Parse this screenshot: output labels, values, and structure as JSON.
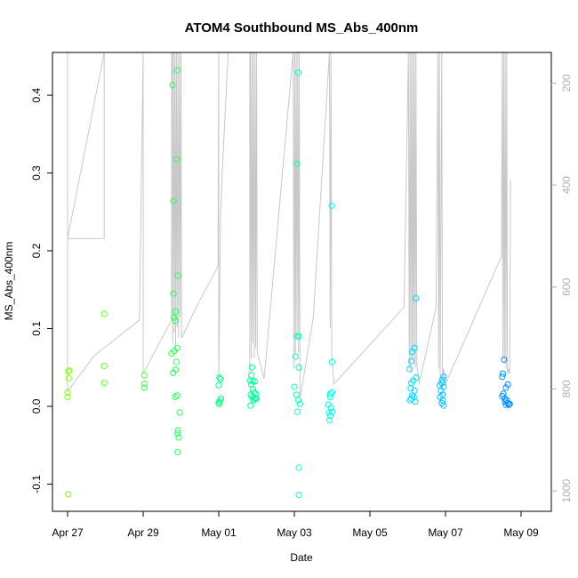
{
  "chart_data": {
    "type": "scatter",
    "title": "ATOM4 Southbound MS_Abs_400nm",
    "xlabel": "Date",
    "ylabel": "MS_Abs_400nm",
    "x_unit": "days since Apr 27",
    "xlim": [
      -0.4,
      12.8
    ],
    "ylim": [
      -0.135,
      0.455
    ],
    "x_ticks": [
      {
        "value": 0,
        "label": "Apr 27"
      },
      {
        "value": 2,
        "label": "Apr 29"
      },
      {
        "value": 4,
        "label": "May 01"
      },
      {
        "value": 6,
        "label": "May 03"
      },
      {
        "value": 8,
        "label": "May 05"
      },
      {
        "value": 10,
        "label": "May 07"
      },
      {
        "value": 12,
        "label": "May 09"
      }
    ],
    "y_ticks": [
      {
        "value": -0.1,
        "label": "-0.1"
      },
      {
        "value": 0.0,
        "label": "0.0"
      },
      {
        "value": 0.1,
        "label": "0.1"
      },
      {
        "value": 0.2,
        "label": "0.2"
      },
      {
        "value": 0.3,
        "label": "0.3"
      },
      {
        "value": 0.4,
        "label": "0.4"
      }
    ],
    "right_axis": {
      "label": "",
      "range": [
        1040,
        140
      ],
      "ticks": [
        {
          "value": 200,
          "label": "200"
        },
        {
          "value": 400,
          "label": "400"
        },
        {
          "value": 600,
          "label": "600"
        },
        {
          "value": 800,
          "label": "800"
        },
        {
          "value": 1000,
          "label": "1000"
        }
      ]
    },
    "series": [
      {
        "name": "MS_Abs_400nm",
        "color_scale": [
          "#7fff00",
          "#00ff7f",
          "#00ffff",
          "#0080ff"
        ],
        "points": [
          {
            "x": 0.02,
            "y": 0.045
          },
          {
            "x": 0.05,
            "y": 0.046
          },
          {
            "x": 0.03,
            "y": 0.036
          },
          {
            "x": 0.0,
            "y": 0.018
          },
          {
            "x": 0.0,
            "y": 0.012
          },
          {
            "x": 0.02,
            "y": -0.113
          },
          {
            "x": 0.97,
            "y": 0.119
          },
          {
            "x": 0.97,
            "y": 0.052
          },
          {
            "x": 0.97,
            "y": 0.03
          },
          {
            "x": 2.03,
            "y": 0.04
          },
          {
            "x": 2.03,
            "y": 0.029
          },
          {
            "x": 2.03,
            "y": 0.024
          },
          {
            "x": 2.78,
            "y": 0.413
          },
          {
            "x": 2.9,
            "y": 0.432
          },
          {
            "x": 2.88,
            "y": 0.318
          },
          {
            "x": 2.8,
            "y": 0.264
          },
          {
            "x": 2.92,
            "y": 0.168
          },
          {
            "x": 2.8,
            "y": 0.145
          },
          {
            "x": 2.86,
            "y": 0.122
          },
          {
            "x": 2.82,
            "y": 0.114
          },
          {
            "x": 2.85,
            "y": 0.11
          },
          {
            "x": 2.75,
            "y": 0.068
          },
          {
            "x": 2.82,
            "y": 0.071
          },
          {
            "x": 2.9,
            "y": 0.075
          },
          {
            "x": 2.88,
            "y": 0.057
          },
          {
            "x": 2.86,
            "y": 0.047
          },
          {
            "x": 2.79,
            "y": 0.043
          },
          {
            "x": 2.85,
            "y": 0.012
          },
          {
            "x": 2.9,
            "y": 0.014
          },
          {
            "x": 2.97,
            "y": -0.008
          },
          {
            "x": 2.92,
            "y": -0.031
          },
          {
            "x": 2.91,
            "y": -0.035
          },
          {
            "x": 2.94,
            "y": -0.04
          },
          {
            "x": 2.91,
            "y": -0.059
          },
          {
            "x": 4.02,
            "y": 0.037
          },
          {
            "x": 4.05,
            "y": 0.035
          },
          {
            "x": 4.0,
            "y": 0.027
          },
          {
            "x": 4.06,
            "y": 0.01
          },
          {
            "x": 4.03,
            "y": 0.007
          },
          {
            "x": 4.02,
            "y": 0.003
          },
          {
            "x": 4.0,
            "y": 0.005
          },
          {
            "x": 4.88,
            "y": 0.05
          },
          {
            "x": 4.86,
            "y": 0.04
          },
          {
            "x": 4.83,
            "y": 0.033
          },
          {
            "x": 4.9,
            "y": 0.032
          },
          {
            "x": 4.95,
            "y": 0.032
          },
          {
            "x": 4.86,
            "y": 0.028
          },
          {
            "x": 4.9,
            "y": 0.022
          },
          {
            "x": 4.93,
            "y": 0.018
          },
          {
            "x": 4.98,
            "y": 0.016
          },
          {
            "x": 4.85,
            "y": 0.015
          },
          {
            "x": 4.88,
            "y": 0.012
          },
          {
            "x": 4.95,
            "y": 0.011
          },
          {
            "x": 4.92,
            "y": 0.008
          },
          {
            "x": 4.97,
            "y": 0.009
          },
          {
            "x": 4.84,
            "y": 0.001
          },
          {
            "x": 5.0,
            "y": 0.01
          },
          {
            "x": 6.1,
            "y": 0.429
          },
          {
            "x": 6.07,
            "y": 0.312
          },
          {
            "x": 6.07,
            "y": 0.09
          },
          {
            "x": 6.12,
            "y": 0.09
          },
          {
            "x": 6.03,
            "y": 0.064
          },
          {
            "x": 6.12,
            "y": 0.05
          },
          {
            "x": 6.0,
            "y": 0.025
          },
          {
            "x": 6.05,
            "y": 0.015
          },
          {
            "x": 6.1,
            "y": 0.008
          },
          {
            "x": 6.15,
            "y": 0.003
          },
          {
            "x": 6.08,
            "y": -0.007
          },
          {
            "x": 6.12,
            "y": -0.079
          },
          {
            "x": 6.12,
            "y": -0.114
          },
          {
            "x": 6.99,
            "y": 0.258
          },
          {
            "x": 7.0,
            "y": 0.057
          },
          {
            "x": 6.95,
            "y": 0.016
          },
          {
            "x": 7.0,
            "y": 0.018
          },
          {
            "x": 6.95,
            "y": 0.012
          },
          {
            "x": 6.9,
            "y": 0.002
          },
          {
            "x": 6.97,
            "y": -0.002
          },
          {
            "x": 6.92,
            "y": -0.008
          },
          {
            "x": 7.0,
            "y": -0.007
          },
          {
            "x": 6.95,
            "y": -0.012
          },
          {
            "x": 6.93,
            "y": -0.018
          },
          {
            "x": 9.22,
            "y": 0.139
          },
          {
            "x": 9.18,
            "y": 0.075
          },
          {
            "x": 9.12,
            "y": 0.07
          },
          {
            "x": 9.1,
            "y": 0.058
          },
          {
            "x": 9.05,
            "y": 0.048
          },
          {
            "x": 9.22,
            "y": 0.037
          },
          {
            "x": 9.15,
            "y": 0.033
          },
          {
            "x": 9.1,
            "y": 0.03
          },
          {
            "x": 9.08,
            "y": 0.023
          },
          {
            "x": 9.18,
            "y": 0.02
          },
          {
            "x": 9.12,
            "y": 0.014
          },
          {
            "x": 9.16,
            "y": 0.012
          },
          {
            "x": 9.06,
            "y": 0.008
          },
          {
            "x": 9.2,
            "y": 0.006
          },
          {
            "x": 9.1,
            "y": 0.01
          },
          {
            "x": 9.95,
            "y": 0.038
          },
          {
            "x": 9.92,
            "y": 0.034
          },
          {
            "x": 9.9,
            "y": 0.03
          },
          {
            "x": 9.85,
            "y": 0.027
          },
          {
            "x": 9.95,
            "y": 0.025
          },
          {
            "x": 9.88,
            "y": 0.02
          },
          {
            "x": 9.92,
            "y": 0.015
          },
          {
            "x": 9.86,
            "y": 0.012
          },
          {
            "x": 9.93,
            "y": 0.008
          },
          {
            "x": 9.9,
            "y": 0.004
          },
          {
            "x": 9.95,
            "y": 0.001
          },
          {
            "x": 11.55,
            "y": 0.06
          },
          {
            "x": 11.52,
            "y": 0.042
          },
          {
            "x": 11.5,
            "y": 0.038
          },
          {
            "x": 11.65,
            "y": 0.028
          },
          {
            "x": 11.6,
            "y": 0.024
          },
          {
            "x": 11.53,
            "y": 0.016
          },
          {
            "x": 11.5,
            "y": 0.013
          },
          {
            "x": 11.57,
            "y": 0.01
          },
          {
            "x": 11.62,
            "y": 0.008
          },
          {
            "x": 11.58,
            "y": 0.006
          },
          {
            "x": 11.65,
            "y": 0.004
          },
          {
            "x": 11.7,
            "y": 0.003
          },
          {
            "x": 11.6,
            "y": 0.002
          },
          {
            "x": 11.68,
            "y": 0.002
          }
        ]
      },
      {
        "name": "right-axis trace (grey)",
        "color": "#c8c8c8",
        "axis": "right",
        "points": [
          {
            "x": 0.0,
            "y": 140
          },
          {
            "x": 0.0,
            "y": 505
          },
          {
            "x": 0.97,
            "y": 505
          },
          {
            "x": 0.97,
            "y": 140
          },
          {
            "x": 0.97,
            "y": 140
          },
          {
            "x": 0.0,
            "y": 505
          },
          {
            "x": 0.0,
            "y": 805
          },
          {
            "x": 0.7,
            "y": 735
          },
          {
            "x": 1.9,
            "y": 665
          },
          {
            "x": 2.0,
            "y": 140
          },
          {
            "x": 2.0,
            "y": 770
          },
          {
            "x": 2.75,
            "y": 665
          },
          {
            "x": 2.75,
            "y": 140
          },
          {
            "x": 2.78,
            "y": 140
          },
          {
            "x": 2.78,
            "y": 710
          },
          {
            "x": 2.8,
            "y": 140
          },
          {
            "x": 2.82,
            "y": 690
          },
          {
            "x": 2.84,
            "y": 140
          },
          {
            "x": 2.86,
            "y": 720
          },
          {
            "x": 2.88,
            "y": 140
          },
          {
            "x": 2.9,
            "y": 680
          },
          {
            "x": 2.92,
            "y": 140
          },
          {
            "x": 2.94,
            "y": 700
          },
          {
            "x": 2.96,
            "y": 140
          },
          {
            "x": 2.98,
            "y": 660
          },
          {
            "x": 3.0,
            "y": 140
          },
          {
            "x": 3.02,
            "y": 700
          },
          {
            "x": 3.4,
            "y": 640
          },
          {
            "x": 3.98,
            "y": 560
          },
          {
            "x": 4.0,
            "y": 140
          },
          {
            "x": 4.0,
            "y": 780
          },
          {
            "x": 4.05,
            "y": 460
          },
          {
            "x": 4.1,
            "y": 360
          },
          {
            "x": 4.25,
            "y": 140
          },
          {
            "x": 4.82,
            "y": 140
          },
          {
            "x": 4.82,
            "y": 770
          },
          {
            "x": 4.84,
            "y": 140
          },
          {
            "x": 4.86,
            "y": 740
          },
          {
            "x": 4.88,
            "y": 140
          },
          {
            "x": 4.9,
            "y": 710
          },
          {
            "x": 4.92,
            "y": 140
          },
          {
            "x": 4.94,
            "y": 740
          },
          {
            "x": 4.96,
            "y": 140
          },
          {
            "x": 4.98,
            "y": 720
          },
          {
            "x": 5.0,
            "y": 140
          },
          {
            "x": 5.02,
            "y": 730
          },
          {
            "x": 5.2,
            "y": 780
          },
          {
            "x": 5.97,
            "y": 140
          },
          {
            "x": 5.99,
            "y": 760
          },
          {
            "x": 6.01,
            "y": 140
          },
          {
            "x": 6.03,
            "y": 730
          },
          {
            "x": 6.05,
            "y": 140
          },
          {
            "x": 6.07,
            "y": 700
          },
          {
            "x": 6.09,
            "y": 140
          },
          {
            "x": 6.11,
            "y": 730
          },
          {
            "x": 6.13,
            "y": 140
          },
          {
            "x": 6.15,
            "y": 820
          },
          {
            "x": 6.5,
            "y": 660
          },
          {
            "x": 6.93,
            "y": 140
          },
          {
            "x": 6.95,
            "y": 680
          },
          {
            "x": 6.97,
            "y": 140
          },
          {
            "x": 6.99,
            "y": 730
          },
          {
            "x": 7.05,
            "y": 790
          },
          {
            "x": 8.9,
            "y": 640
          },
          {
            "x": 9.02,
            "y": 140
          },
          {
            "x": 9.04,
            "y": 760
          },
          {
            "x": 9.06,
            "y": 140
          },
          {
            "x": 9.08,
            "y": 770
          },
          {
            "x": 9.1,
            "y": 140
          },
          {
            "x": 9.12,
            "y": 740
          },
          {
            "x": 9.14,
            "y": 140
          },
          {
            "x": 9.16,
            "y": 750
          },
          {
            "x": 9.18,
            "y": 140
          },
          {
            "x": 9.2,
            "y": 760
          },
          {
            "x": 9.22,
            "y": 140
          },
          {
            "x": 9.24,
            "y": 750
          },
          {
            "x": 9.3,
            "y": 790
          },
          {
            "x": 9.75,
            "y": 640
          },
          {
            "x": 9.8,
            "y": 140
          },
          {
            "x": 9.82,
            "y": 760
          },
          {
            "x": 9.84,
            "y": 140
          },
          {
            "x": 9.86,
            "y": 780
          },
          {
            "x": 9.9,
            "y": 140
          },
          {
            "x": 9.92,
            "y": 780
          },
          {
            "x": 9.95,
            "y": 760
          },
          {
            "x": 10.0,
            "y": 790
          },
          {
            "x": 11.48,
            "y": 540
          },
          {
            "x": 11.5,
            "y": 140
          },
          {
            "x": 11.52,
            "y": 740
          },
          {
            "x": 11.54,
            "y": 140
          },
          {
            "x": 11.56,
            "y": 750
          },
          {
            "x": 11.58,
            "y": 140
          },
          {
            "x": 11.6,
            "y": 760
          },
          {
            "x": 11.62,
            "y": 140
          },
          {
            "x": 11.64,
            "y": 770
          },
          {
            "x": 11.66,
            "y": 760
          },
          {
            "x": 11.7,
            "y": 770
          },
          {
            "x": 11.72,
            "y": 390
          }
        ]
      }
    ]
  }
}
